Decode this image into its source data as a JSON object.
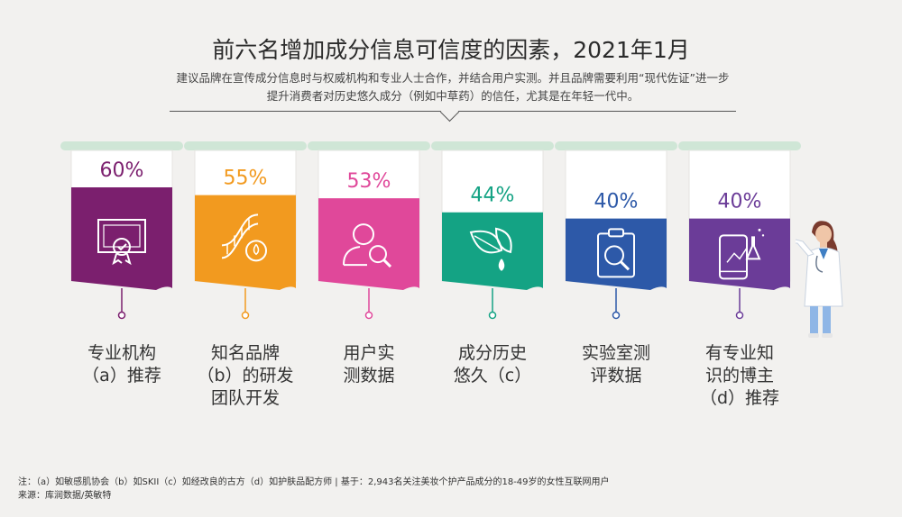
{
  "title": "前六名增加成分信息可信度的因素，2021年1月",
  "subtitle": "建议品牌在宣传成分信息时与权威机构和专业人士合作，并结合用户实测。并且品牌需要利用“现代佐证”进一步提升消费者对历史悠久成分（例如中草药）的信任，尤其是在年轻一代中。",
  "chart_data": {
    "type": "bar",
    "categories": [
      "专业机构\n（a）推荐",
      "知名品牌\n（b）的研发\n团队开发",
      "用户实\n测数据",
      "成分历史\n悠久（c）",
      "实验室测\n评数据",
      "有专业知\n识的博主\n（d）推荐"
    ],
    "values": [
      60,
      55,
      53,
      44,
      40,
      40
    ],
    "value_labels": [
      "60%",
      "55%",
      "53%",
      "44%",
      "40%",
      "40%"
    ],
    "colors": [
      "#7b1f6e",
      "#f29a1f",
      "#e0489a",
      "#14a384",
      "#2d59a8",
      "#6b3c98"
    ],
    "icons": [
      "certificate-icon",
      "dna-icon",
      "user-search-icon",
      "leaf-drop-icon",
      "clipboard-magnifier-icon",
      "phone-flask-icon"
    ]
  },
  "footnote": {
    "line1": "注：（a）如敏感肌协会（b）如SKII（c）如经改良的古方（d）如护肤品配方师 | 基于：2,943名关注美妆个护产品成分的18-49岁的女性互联网用户",
    "line2": "来源：库润数据/英敏特"
  }
}
